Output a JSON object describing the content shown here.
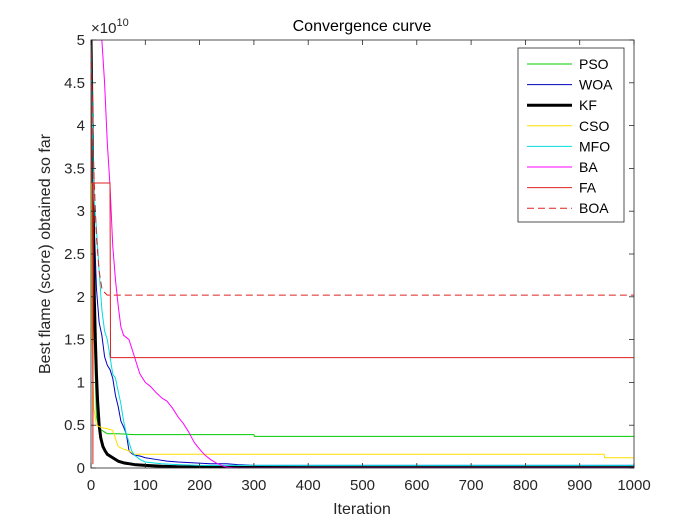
{
  "chart_data": {
    "type": "line",
    "title": "Convergence curve",
    "xlabel": "Iteration",
    "ylabel": "Best flame (score) obtained so far",
    "xlim": [
      0,
      1000
    ],
    "ylim": [
      0,
      5
    ],
    "y_exponent_label": "×10",
    "y_exponent": "10",
    "x_ticks": [
      0,
      100,
      200,
      300,
      400,
      500,
      600,
      700,
      800,
      900,
      1000
    ],
    "y_ticks": [
      0,
      0.5,
      1,
      1.5,
      2,
      2.5,
      3,
      3.5,
      4,
      4.5,
      5
    ],
    "grid": false,
    "legend_position": "top-right",
    "series": [
      {
        "name": "PSO",
        "color": "#00cc00",
        "dash": "solid",
        "width": 1,
        "x": [
          0,
          3,
          6,
          10,
          15,
          20,
          25,
          30,
          50,
          80,
          150,
          300,
          301,
          500,
          1000
        ],
        "y": [
          5,
          3.5,
          1.5,
          0.6,
          0.46,
          0.44,
          0.42,
          0.4,
          0.4,
          0.39,
          0.39,
          0.39,
          0.37,
          0.37,
          0.37
        ]
      },
      {
        "name": "WOA",
        "color": "#0000bf",
        "dash": "solid",
        "width": 1,
        "x": [
          0,
          5,
          10,
          15,
          20,
          25,
          30,
          35,
          40,
          45,
          50,
          55,
          60,
          65,
          70,
          75,
          80,
          90,
          100,
          120,
          140,
          160,
          190,
          220,
          250,
          270,
          300,
          350,
          400,
          500,
          600,
          700,
          800,
          900,
          1000
        ],
        "y": [
          5,
          3,
          2.1,
          1.7,
          1.55,
          1.3,
          1.2,
          1.15,
          1.05,
          0.85,
          0.72,
          0.55,
          0.48,
          0.4,
          0.2,
          0.17,
          0.15,
          0.14,
          0.12,
          0.1,
          0.08,
          0.07,
          0.06,
          0.05,
          0.05,
          0.04,
          0.03,
          0.03,
          0.03,
          0.03,
          0.03,
          0.03,
          0.03,
          0.03,
          0.03
        ]
      },
      {
        "name": "KF",
        "color": "#000000",
        "dash": "solid",
        "width": 3,
        "x": [
          0,
          3,
          6,
          8,
          10,
          12,
          15,
          18,
          22,
          26,
          30,
          40,
          50,
          60,
          80,
          100,
          130,
          160,
          200,
          250,
          300,
          400,
          600,
          1000
        ],
        "y": [
          5,
          3.5,
          2,
          1.5,
          1.1,
          0.8,
          0.5,
          0.35,
          0.25,
          0.2,
          0.16,
          0.12,
          0.08,
          0.06,
          0.04,
          0.03,
          0.02,
          0.015,
          0.01,
          0.008,
          0.006,
          0.005,
          0.005,
          0.005
        ]
      },
      {
        "name": "CSO",
        "color": "#ffdd00",
        "dash": "solid",
        "width": 1,
        "x": [
          0,
          2,
          5,
          10,
          20,
          30,
          40,
          50,
          60,
          70,
          80,
          100,
          150,
          200,
          300,
          500,
          800,
          945,
          946,
          1000
        ],
        "y": [
          5,
          1.5,
          0.7,
          0.5,
          0.47,
          0.46,
          0.44,
          0.25,
          0.22,
          0.2,
          0.16,
          0.16,
          0.16,
          0.16,
          0.16,
          0.16,
          0.16,
          0.16,
          0.12,
          0.12
        ]
      },
      {
        "name": "MFO",
        "color": "#00dddd",
        "dash": "solid",
        "width": 1,
        "x": [
          0,
          5,
          10,
          15,
          20,
          25,
          30,
          35,
          40,
          45,
          50,
          55,
          60,
          65,
          70,
          75,
          80,
          90,
          100,
          130,
          160,
          200,
          300,
          500,
          1000
        ],
        "y": [
          5,
          3.2,
          2.8,
          2.3,
          1.85,
          1.6,
          1.5,
          1.3,
          1.1,
          1.05,
          0.9,
          0.75,
          0.55,
          0.4,
          0.3,
          0.2,
          0.15,
          0.1,
          0.07,
          0.05,
          0.04,
          0.03,
          0.03,
          0.03,
          0.03
        ]
      },
      {
        "name": "BA",
        "color": "#ff00ff",
        "dash": "solid",
        "width": 1,
        "x": [
          0,
          10,
          20,
          25,
          30,
          35,
          40,
          45,
          50,
          55,
          60,
          70,
          80,
          90,
          100,
          110,
          120,
          130,
          140,
          150,
          160,
          170,
          180,
          190,
          200,
          210,
          220,
          230,
          240,
          250,
          260,
          270,
          300,
          400,
          1000
        ],
        "y": [
          5,
          5,
          5,
          4.5,
          3.8,
          3.3,
          2.6,
          2.2,
          1.9,
          1.65,
          1.55,
          1.5,
          1.3,
          1.1,
          1.0,
          0.95,
          0.88,
          0.82,
          0.78,
          0.7,
          0.6,
          0.52,
          0.42,
          0.3,
          0.22,
          0.15,
          0.1,
          0.06,
          0.03,
          0.01,
          0.005,
          0.003,
          0.002,
          0.002,
          0.002
        ]
      },
      {
        "name": "FA",
        "color": "#dd2222",
        "dash": "solid",
        "width": 1,
        "x": [
          0,
          1,
          2,
          3,
          3.5,
          4,
          5,
          35,
          36,
          1000
        ],
        "y": [
          5,
          3.6,
          3.33,
          3.33,
          0.05,
          3.33,
          3.33,
          3.33,
          1.29,
          1.29
        ]
      },
      {
        "name": "BOA",
        "color": "#dd2222",
        "dash": "dashed",
        "width": 1,
        "x": [
          0,
          3,
          5,
          10,
          15,
          20,
          25,
          30,
          1000
        ],
        "y": [
          5,
          4.2,
          3.5,
          2.7,
          2.3,
          2.1,
          2.05,
          2.02,
          2.02
        ]
      }
    ]
  }
}
